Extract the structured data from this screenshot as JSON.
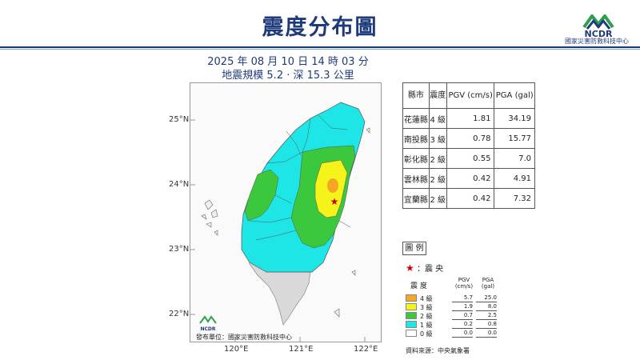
{
  "header": {
    "title": "震度分布圖",
    "logo_text": "NCDR",
    "org": "國家災害防救科技中心"
  },
  "event": {
    "datetime": "2025 年 08 月 10 日 14 時 03 分",
    "magnitude_depth": "地震規模 5.2 · 深 15.3 公里"
  },
  "map": {
    "lat_labels": [
      "25°N",
      "24°N",
      "23°N",
      "22°N"
    ],
    "lon_labels": [
      "120°E",
      "121°E",
      "122°E"
    ],
    "issuer": "發布單位：國家災害防救科技中心",
    "issuer_logo": "NCDR",
    "epicenter_icon": "star-icon"
  },
  "table": {
    "headers": [
      "縣市",
      "震度",
      "PGV (cm/s)",
      "PGA (gal)"
    ],
    "rows": [
      {
        "county": "花蓮縣",
        "level": "4 級",
        "pgv": "1.81",
        "pga": "34.19"
      },
      {
        "county": "南投縣",
        "level": "3 級",
        "pgv": "0.78",
        "pga": "15.77"
      },
      {
        "county": "彰化縣",
        "level": "2 級",
        "pgv": "0.55",
        "pga": "7.0"
      },
      {
        "county": "雲林縣",
        "level": "2 級",
        "pgv": "0.42",
        "pga": "4.91"
      },
      {
        "county": "宜蘭縣",
        "level": "2 級",
        "pgv": "0.42",
        "pga": "7.32"
      }
    ]
  },
  "legend": {
    "title": "圖 例",
    "epicenter": "：震 央",
    "col_title": "震 度",
    "pgv_unit": [
      "PGV",
      "(cm/s)"
    ],
    "pga_unit": [
      "PGA",
      "(gal)"
    ],
    "rows": [
      {
        "label": "4 級",
        "pgv": "5.7",
        "pga": "25.0",
        "color": "#f5a623"
      },
      {
        "label": "3 級",
        "pgv": "1.9",
        "pga": "8.0",
        "color": "#f4f41a"
      },
      {
        "label": "2 級",
        "pgv": "0.7",
        "pga": "2.5",
        "color": "#3cc83c"
      },
      {
        "label": "1 級",
        "pgv": "0.2",
        "pga": "0.8",
        "color": "#1ee6e6"
      },
      {
        "label": "0 級",
        "pgv": "0.0",
        "pga": "0.0",
        "color": "#ffffff"
      }
    ]
  },
  "source": "資料來源：中央氣象署",
  "colors": {
    "level4": "#f5a623",
    "level3": "#f4f41a",
    "level2": "#3cc83c",
    "level1": "#1ee6e6",
    "level0": "#d9d9d9",
    "brand": "#1f3a7a"
  }
}
